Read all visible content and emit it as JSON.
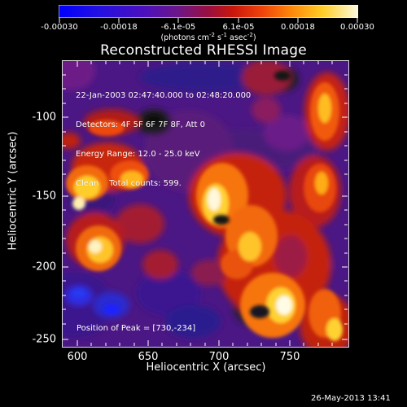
{
  "title": "Reconstructed RHESSI Image",
  "colorbar": {
    "tick_labels": [
      "-0.00030",
      "-0.00018",
      "-6.1e-05",
      "6.1e-05",
      "0.00018",
      "0.00030"
    ],
    "units_prefix": "(photons cm",
    "units_sup1": "-2",
    "units_mid1": " s",
    "units_sup2": "-1",
    "units_mid2": " asec",
    "units_sup3": "-2",
    "units_suffix": ")",
    "range": [
      -0.0003,
      0.0003
    ],
    "colors": [
      "#0000ff",
      "#4a0fc4",
      "#7a1a9a",
      "#b0102a",
      "#ef2a05",
      "#ff8a0a",
      "#ffd628",
      "#fffbd8"
    ]
  },
  "image": {
    "info_lines": [
      "22-Jan-2003 02:47:40.000 to 02:48:20.000",
      "Detectors: 4F 5F 6F 7F 8F, Att 0",
      "Energy Range: 12.0 - 25.0 keV",
      "Clean    Total counts: 599."
    ],
    "peak_text": "Position of Peak = [730,-234]"
  },
  "axes": {
    "xlabel": "Heliocentric X (arcsec)",
    "ylabel": "Heliocentric Y (arcsec)",
    "x_ticks": [
      "600",
      "650",
      "700",
      "750"
    ],
    "y_ticks": [
      "-100",
      "-150",
      "-200",
      "-250"
    ]
  },
  "footer": {
    "timestamp": "26-May-2013 13:41"
  }
}
